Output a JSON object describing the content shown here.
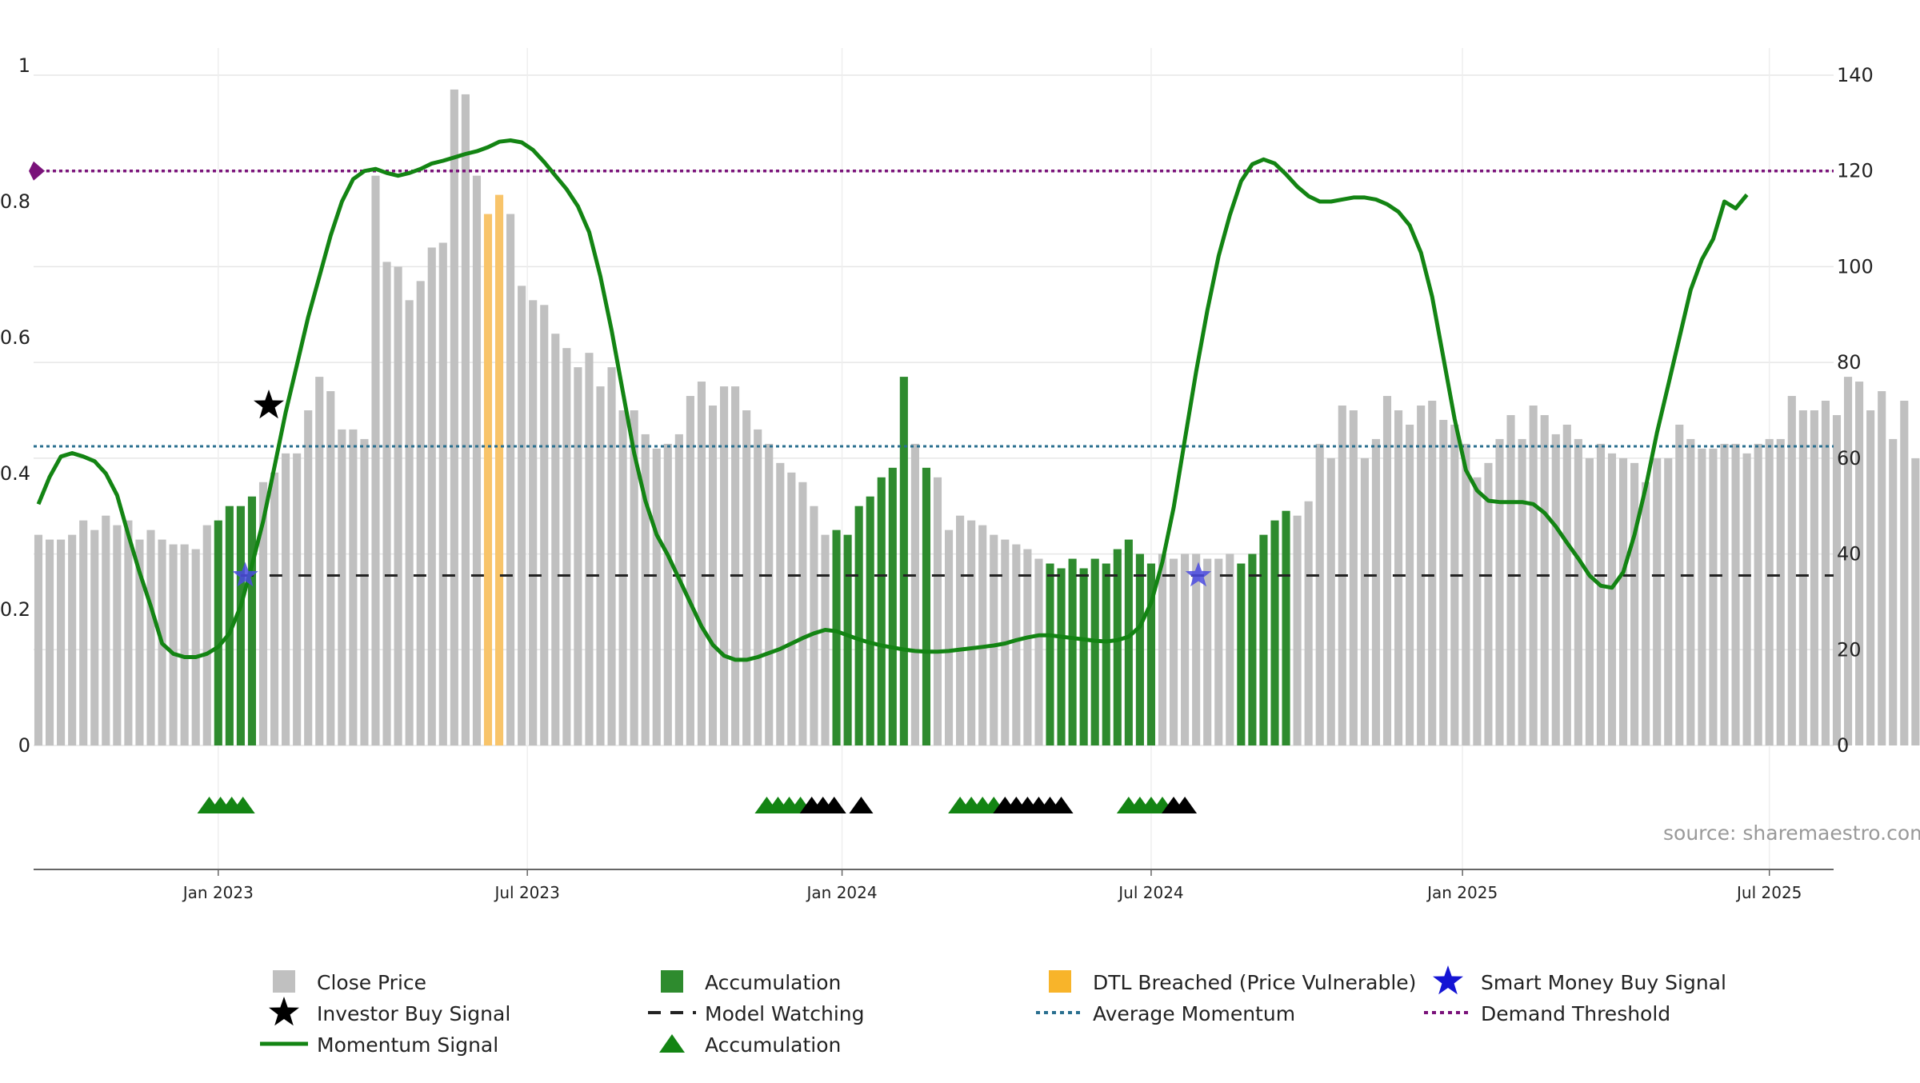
{
  "chart_data": {
    "type": "bar",
    "title": "",
    "source_text": "source: sharemaestro.com",
    "left_axis": {
      "ylim": [
        0,
        1
      ],
      "ticks": [
        {
          "v": 0,
          "label": "0"
        },
        {
          "v": 0.2,
          "label": "0.2"
        },
        {
          "v": 0.4,
          "label": "0.4"
        },
        {
          "v": 0.6,
          "label": "0.6"
        },
        {
          "v": 0.8,
          "label": "0.8"
        },
        {
          "v": 1,
          "label": "1"
        }
      ]
    },
    "right_axis": {
      "ylim": [
        0,
        142
      ],
      "ticks": [
        {
          "v": 0,
          "label": "0"
        },
        {
          "v": 20,
          "label": "20"
        },
        {
          "v": 40,
          "label": "40"
        },
        {
          "v": 60,
          "label": "60"
        },
        {
          "v": 80,
          "label": "80"
        },
        {
          "v": 100,
          "label": "100"
        },
        {
          "v": 120,
          "label": "120"
        },
        {
          "v": 140,
          "label": "140"
        }
      ]
    },
    "x_axis": {
      "range_weeks": [
        0,
        166
      ],
      "ticks": [
        {
          "w": 16,
          "label": "Jan 2023"
        },
        {
          "w": 43.5,
          "label": "Jul 2023"
        },
        {
          "w": 71.5,
          "label": "Jan 2024"
        },
        {
          "w": 99,
          "label": "Jul 2024"
        },
        {
          "w": 126.7,
          "label": "Jan 2025"
        },
        {
          "w": 154,
          "label": "Jul 2025"
        }
      ]
    },
    "bar_colors": {
      "close": "#c0c0c0",
      "accumulation": "#2e8b2e",
      "dtl": "#f8c46a"
    },
    "close_price_bars": [
      44,
      43,
      43,
      44,
      47,
      45,
      48,
      46,
      47,
      43,
      45,
      43,
      42,
      42,
      41,
      46,
      47,
      50,
      50,
      52,
      55,
      57,
      61,
      61,
      70,
      77,
      74,
      66,
      66,
      64,
      119,
      101,
      100,
      93,
      97,
      104,
      105,
      137,
      136,
      119,
      111,
      115,
      111,
      96,
      93,
      92,
      86,
      83,
      79,
      82,
      75,
      79,
      70,
      70,
      65,
      62,
      63,
      65,
      73,
      76,
      71,
      75,
      75,
      70,
      66,
      63,
      59,
      57,
      55,
      50,
      44,
      45,
      44,
      50,
      52,
      56,
      58,
      77,
      63,
      58,
      56,
      45,
      48,
      47,
      46,
      44,
      43,
      42,
      41,
      39,
      38,
      37,
      39,
      37,
      39,
      38,
      41,
      43,
      40,
      38,
      40,
      39,
      40,
      40,
      39,
      39,
      40,
      38,
      40,
      44,
      47,
      49,
      48,
      51,
      63,
      60,
      71,
      70,
      60,
      64,
      73,
      70,
      67,
      71,
      72,
      68,
      67,
      63,
      56,
      59,
      64,
      69,
      64,
      71,
      69,
      65,
      67,
      64,
      60,
      63,
      61,
      60,
      59,
      55,
      60,
      60,
      67,
      64,
      62,
      62,
      63,
      63,
      61,
      63,
      64,
      64,
      73,
      70,
      70,
      72,
      69,
      77,
      76,
      70,
      74,
      64,
      72,
      60
    ],
    "accumulation_periods": [
      [
        16,
        19
      ],
      [
        70.5,
        77.5
      ],
      [
        78.5,
        79
      ],
      [
        89.5,
        99.5
      ],
      [
        106.5,
        111.5
      ]
    ],
    "dtl_periods": [
      [
        40,
        41
      ]
    ],
    "series": [
      {
        "name": "Momentum Signal",
        "axis": "left",
        "color": "#138413",
        "points": [
          [
            0,
            0.355
          ],
          [
            1,
            0.395
          ],
          [
            2,
            0.425
          ],
          [
            3,
            0.43
          ],
          [
            4,
            0.425
          ],
          [
            5,
            0.418
          ],
          [
            6,
            0.4
          ],
          [
            7,
            0.368
          ],
          [
            8,
            0.31
          ],
          [
            9,
            0.255
          ],
          [
            10,
            0.205
          ],
          [
            11,
            0.15
          ],
          [
            12,
            0.135
          ],
          [
            13,
            0.13
          ],
          [
            14,
            0.13
          ],
          [
            15,
            0.135
          ],
          [
            16,
            0.145
          ],
          [
            17,
            0.165
          ],
          [
            18,
            0.205
          ],
          [
            19,
            0.265
          ],
          [
            20,
            0.33
          ],
          [
            21,
            0.41
          ],
          [
            22,
            0.49
          ],
          [
            23,
            0.56
          ],
          [
            24,
            0.63
          ],
          [
            25,
            0.69
          ],
          [
            26,
            0.75
          ],
          [
            27,
            0.8
          ],
          [
            28,
            0.833
          ],
          [
            29,
            0.845
          ],
          [
            30,
            0.848
          ],
          [
            31,
            0.842
          ],
          [
            32,
            0.838
          ],
          [
            33,
            0.842
          ],
          [
            34,
            0.848
          ],
          [
            35,
            0.856
          ],
          [
            36,
            0.86
          ],
          [
            37,
            0.865
          ],
          [
            38,
            0.87
          ],
          [
            39,
            0.874
          ],
          [
            40,
            0.88
          ],
          [
            41,
            0.888
          ],
          [
            42,
            0.89
          ],
          [
            43,
            0.887
          ],
          [
            44,
            0.876
          ],
          [
            45,
            0.858
          ],
          [
            46,
            0.838
          ],
          [
            47,
            0.818
          ],
          [
            48,
            0.793
          ],
          [
            49,
            0.755
          ],
          [
            50,
            0.69
          ],
          [
            51,
            0.61
          ],
          [
            52,
            0.52
          ],
          [
            53,
            0.43
          ],
          [
            54,
            0.36
          ],
          [
            55,
            0.31
          ],
          [
            56,
            0.28
          ],
          [
            57,
            0.245
          ],
          [
            58,
            0.21
          ],
          [
            59,
            0.175
          ],
          [
            60,
            0.148
          ],
          [
            61,
            0.132
          ],
          [
            62,
            0.126
          ],
          [
            63,
            0.126
          ],
          [
            64,
            0.13
          ],
          [
            65,
            0.136
          ],
          [
            66,
            0.142
          ],
          [
            67,
            0.15
          ],
          [
            68,
            0.158
          ],
          [
            69,
            0.165
          ],
          [
            70,
            0.17
          ],
          [
            71,
            0.168
          ],
          [
            72,
            0.162
          ],
          [
            73,
            0.156
          ],
          [
            74,
            0.151
          ],
          [
            75,
            0.147
          ],
          [
            76,
            0.144
          ],
          [
            77,
            0.141
          ],
          [
            78,
            0.139
          ],
          [
            79,
            0.138
          ],
          [
            80,
            0.138
          ],
          [
            81,
            0.139
          ],
          [
            82,
            0.141
          ],
          [
            83,
            0.143
          ],
          [
            84,
            0.145
          ],
          [
            85,
            0.147
          ],
          [
            86,
            0.15
          ],
          [
            87,
            0.155
          ],
          [
            88,
            0.159
          ],
          [
            89,
            0.162
          ],
          [
            90,
            0.162
          ],
          [
            91,
            0.16
          ],
          [
            92,
            0.158
          ],
          [
            93,
            0.156
          ],
          [
            94,
            0.154
          ],
          [
            95,
            0.153
          ],
          [
            96,
            0.155
          ],
          [
            97,
            0.16
          ],
          [
            98,
            0.175
          ],
          [
            99,
            0.21
          ],
          [
            100,
            0.27
          ],
          [
            101,
            0.35
          ],
          [
            102,
            0.45
          ],
          [
            103,
            0.55
          ],
          [
            104,
            0.64
          ],
          [
            105,
            0.72
          ],
          [
            106,
            0.78
          ],
          [
            107,
            0.83
          ],
          [
            108,
            0.855
          ],
          [
            109,
            0.862
          ],
          [
            110,
            0.856
          ],
          [
            111,
            0.84
          ],
          [
            112,
            0.822
          ],
          [
            113,
            0.808
          ],
          [
            114,
            0.8
          ],
          [
            115,
            0.8
          ],
          [
            116,
            0.803
          ],
          [
            117,
            0.806
          ],
          [
            118,
            0.806
          ],
          [
            119,
            0.803
          ],
          [
            120,
            0.796
          ],
          [
            121,
            0.785
          ],
          [
            122,
            0.765
          ],
          [
            123,
            0.725
          ],
          [
            124,
            0.66
          ],
          [
            125,
            0.57
          ],
          [
            126,
            0.48
          ],
          [
            127,
            0.405
          ],
          [
            128,
            0.375
          ],
          [
            129,
            0.36
          ],
          [
            130,
            0.358
          ],
          [
            131,
            0.358
          ],
          [
            132,
            0.358
          ],
          [
            133,
            0.355
          ],
          [
            134,
            0.342
          ],
          [
            135,
            0.322
          ],
          [
            136,
            0.298
          ],
          [
            137,
            0.275
          ],
          [
            138,
            0.25
          ],
          [
            139,
            0.235
          ],
          [
            140,
            0.232
          ],
          [
            141,
            0.255
          ],
          [
            142,
            0.31
          ],
          [
            143,
            0.38
          ],
          [
            144,
            0.46
          ],
          [
            145,
            0.53
          ],
          [
            146,
            0.6
          ],
          [
            147,
            0.67
          ],
          [
            148,
            0.715
          ],
          [
            149,
            0.745
          ],
          [
            150,
            0.8
          ],
          [
            151,
            0.79
          ],
          [
            152,
            0.81
          ]
        ]
      },
      {
        "name": "Average Momentum",
        "axis": "left",
        "color": "#2a6f8f",
        "value": 0.44
      },
      {
        "name": "Demand Threshold",
        "axis": "left",
        "color": "#7a127a",
        "value": 0.845
      },
      {
        "name": "Model Watching",
        "axis": "left",
        "color": "#222222",
        "value": 0.25,
        "start_week": 18
      }
    ],
    "investor_buy_signals": [
      {
        "w": 20.5,
        "y": 0.5
      }
    ],
    "smart_money_buy_signals": [
      {
        "w": 18.4,
        "y": 0.25
      },
      {
        "w": 103.2,
        "y": 0.25
      }
    ],
    "accumulation_triangles_green": [
      15.2,
      16.2,
      17.2,
      18.2,
      64.8,
      65.8,
      66.8,
      67.8,
      82.0,
      83.0,
      84.0,
      85.0,
      97.0,
      98.0,
      99.0,
      100.0
    ],
    "accumulation_triangles_black": [
      68.8,
      69.8,
      70.8,
      73.2,
      86.0,
      87.0,
      88.0,
      89.0,
      90.0,
      91.0,
      101.0,
      102.0
    ],
    "legend": [
      {
        "label": "Close Price",
        "marker": "grey-square"
      },
      {
        "label": "Accumulation",
        "marker": "green-square"
      },
      {
        "label": "DTL Breached (Price Vulnerable)",
        "marker": "orange-square"
      },
      {
        "label": "Smart Money Buy Signal",
        "marker": "blue-star"
      },
      {
        "label": "Investor Buy Signal",
        "marker": "black-star"
      },
      {
        "label": "Model Watching",
        "marker": "black-dash"
      },
      {
        "label": "Average Momentum",
        "marker": "blue-dot-line"
      },
      {
        "label": "Demand Threshold",
        "marker": "purple-dot-line"
      },
      {
        "label": "Momentum Signal",
        "marker": "green-line"
      },
      {
        "label": "Accumulation",
        "marker": "green-triangle"
      }
    ]
  }
}
